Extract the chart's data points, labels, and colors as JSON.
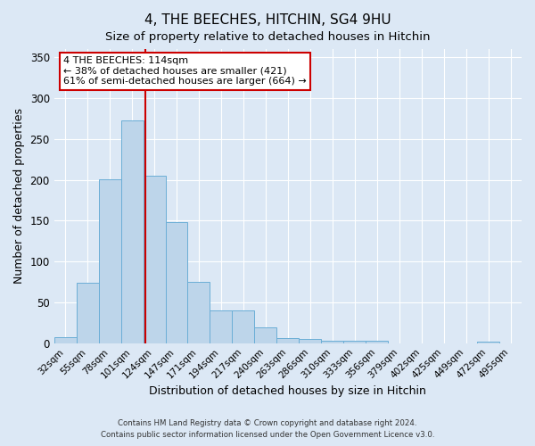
{
  "title": "4, THE BEECHES, HITCHIN, SG4 9HU",
  "subtitle": "Size of property relative to detached houses in Hitchin",
  "xlabel": "Distribution of detached houses by size in Hitchin",
  "ylabel": "Number of detached properties",
  "bin_labels": [
    "32sqm",
    "55sqm",
    "78sqm",
    "101sqm",
    "124sqm",
    "147sqm",
    "171sqm",
    "194sqm",
    "217sqm",
    "240sqm",
    "263sqm",
    "286sqm",
    "310sqm",
    "333sqm",
    "356sqm",
    "379sqm",
    "402sqm",
    "425sqm",
    "449sqm",
    "472sqm",
    "495sqm"
  ],
  "bin_values": [
    7,
    74,
    201,
    273,
    205,
    148,
    75,
    40,
    40,
    19,
    6,
    5,
    3,
    3,
    3,
    0,
    0,
    0,
    0,
    2,
    0
  ],
  "bar_color": "#bdd5ea",
  "bar_edge_color": "#6baed6",
  "vline_color": "#cc0000",
  "vline_x_index": 3.59,
  "annotation_text": "4 THE BEECHES: 114sqm\n← 38% of detached houses are smaller (421)\n61% of semi-detached houses are larger (664) →",
  "annotation_box_facecolor": "#ffffff",
  "annotation_box_edgecolor": "#cc0000",
  "ylim": [
    0,
    360
  ],
  "yticks": [
    0,
    50,
    100,
    150,
    200,
    250,
    300,
    350
  ],
  "bg_color": "#dce8f5",
  "grid_color": "#ffffff",
  "footer_line1": "Contains HM Land Registry data © Crown copyright and database right 2024.",
  "footer_line2": "Contains public sector information licensed under the Open Government Licence v3.0."
}
